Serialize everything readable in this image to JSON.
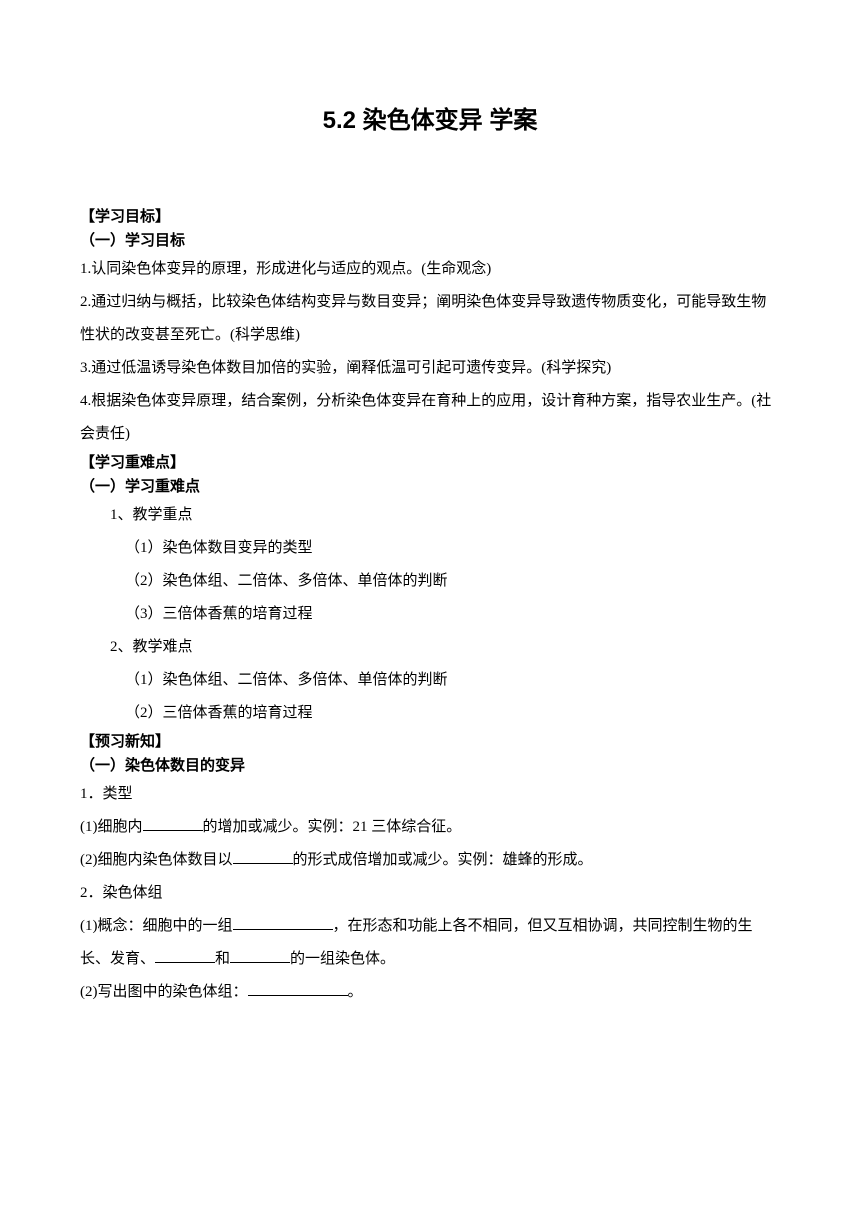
{
  "title": "5.2 染色体变异  学案",
  "objectives": {
    "header": "【学习目标】",
    "sub_header": "（一）学习目标",
    "items": [
      "1.认同染色体变异的原理，形成进化与适应的观点。(生命观念)",
      "2.通过归纳与概括，比较染色体结构变异与数目变异；阐明染色体变异导致遗传物质变化，可能导致生物性状的改变甚至死亡。(科学思维)",
      "3.通过低温诱导染色体数目加倍的实验，阐释低温可引起可遗传变异。(科学探究)",
      "4.根据染色体变异原理，结合案例，分析染色体变异在育种上的应用，设计育种方案，指导农业生产。(社会责任)"
    ]
  },
  "key_points": {
    "header": "【学习重难点】",
    "sub_header": "（一）学习重难点",
    "teach_key": "1、教学重点",
    "teach_key_items": [
      "（1）染色体数目变异的类型",
      "（2）染色体组、二倍体、多倍体、单倍体的判断",
      "（3）三倍体香蕉的培育过程"
    ],
    "teach_diff": "2、教学难点",
    "teach_diff_items": [
      "（1）染色体组、二倍体、多倍体、单倍体的判断",
      "（2）三倍体香蕉的培育过程"
    ]
  },
  "preview": {
    "header": "【预习新知】",
    "sub_header": "（一）染色体数目的变异",
    "types_label": "1．类型",
    "type1_before": "(1)细胞内",
    "type1_after": "的增加或减少。实例：21 三体综合征。",
    "type2_before": "(2)细胞内染色体数目以",
    "type2_after": "的形式成倍增加或减少。实例：雄蜂的形成。",
    "group_label": "2．染色体组",
    "concept_before": "(1)概念：细胞中的一组",
    "concept_mid1": "，在形态和功能上各不相同，但又互相协调，共同控制生物的生长、发育、",
    "concept_mid2": "和",
    "concept_after": "的一组染色体。",
    "write_label_before": "(2)写出图中的染色体组：",
    "write_label_after": "。"
  },
  "colors": {
    "text": "#000000",
    "background": "#ffffff"
  }
}
